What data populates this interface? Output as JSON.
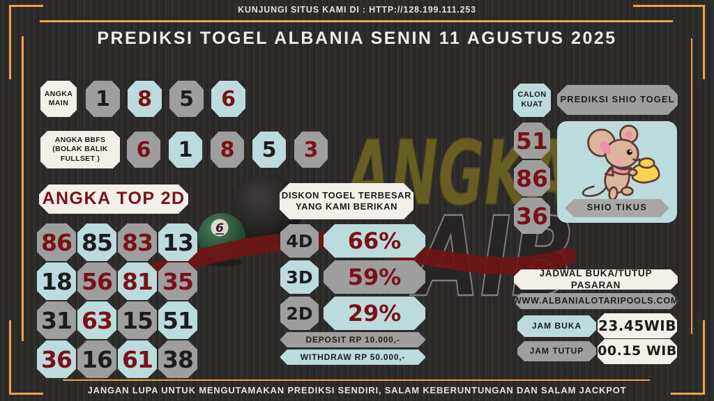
{
  "topbar": {
    "text": "KUNJUNGI SITUS KAMI DI : HTTP://128.199.111.253"
  },
  "header": {
    "title": "PREDIKSI TOGEL ALBANIA SENIN 11 AGUSTUS 2025"
  },
  "angka_main": {
    "label": "ANGKA\nMAIN",
    "tiles": [
      {
        "v": "1",
        "bg": "gray",
        "fg": "black"
      },
      {
        "v": "8",
        "bg": "blue",
        "fg": "red"
      },
      {
        "v": "5",
        "bg": "gray",
        "fg": "black"
      },
      {
        "v": "6",
        "bg": "blue",
        "fg": "red"
      }
    ]
  },
  "angka_bbfs": {
    "label": "ANGKA BBFS\n(BOLAK BALIK\nFULLSET )",
    "tiles": [
      {
        "v": "6",
        "bg": "gray",
        "fg": "red"
      },
      {
        "v": "1",
        "bg": "blue",
        "fg": "black"
      },
      {
        "v": "8",
        "bg": "gray",
        "fg": "red"
      },
      {
        "v": "5",
        "bg": "blue",
        "fg": "black"
      },
      {
        "v": "3",
        "bg": "gray",
        "fg": "red"
      }
    ]
  },
  "angka_top_2d": {
    "label": "ANGKA TOP 2D",
    "tiles": [
      {
        "v": "86",
        "bg": "gray",
        "fg": "red"
      },
      {
        "v": "85",
        "bg": "blue",
        "fg": "black"
      },
      {
        "v": "83",
        "bg": "gray",
        "fg": "red"
      },
      {
        "v": "13",
        "bg": "blue",
        "fg": "black"
      },
      {
        "v": "18",
        "bg": "blue",
        "fg": "black"
      },
      {
        "v": "56",
        "bg": "gray",
        "fg": "red"
      },
      {
        "v": "81",
        "bg": "blue",
        "fg": "red"
      },
      {
        "v": "35",
        "bg": "gray",
        "fg": "red"
      },
      {
        "v": "31",
        "bg": "gray",
        "fg": "black"
      },
      {
        "v": "63",
        "bg": "blue",
        "fg": "red"
      },
      {
        "v": "15",
        "bg": "gray",
        "fg": "black"
      },
      {
        "v": "51",
        "bg": "blue",
        "fg": "black"
      },
      {
        "v": "36",
        "bg": "blue",
        "fg": "red"
      },
      {
        "v": "16",
        "bg": "gray",
        "fg": "black"
      },
      {
        "v": "61",
        "bg": "blue",
        "fg": "red"
      },
      {
        "v": "38",
        "bg": "gray",
        "fg": "black"
      }
    ]
  },
  "diskon": {
    "label": "DISKON TOGEL TERBESAR\nYANG KAMI BERIKAN",
    "rows": [
      {
        "label": "4D",
        "value": "66%",
        "label_bg": "gray",
        "value_bg": "blue"
      },
      {
        "label": "3D",
        "value": "59%",
        "label_bg": "blue",
        "value_bg": "gray"
      },
      {
        "label": "2D",
        "value": "29%",
        "label_bg": "gray",
        "value_bg": "blue"
      }
    ],
    "deposit": "DEPOSIT RP 10.000,-",
    "withdraw": "WITHDRAW RP 50.000,-"
  },
  "shio": {
    "calon_kuat_label": "CALON\nKUAT",
    "header": "PREDIKSI SHIO TOGEL",
    "numbers": [
      {
        "v": "51",
        "bg": "gray",
        "fg": "red"
      },
      {
        "v": "86",
        "bg": "gray",
        "fg": "red"
      },
      {
        "v": "36",
        "bg": "gray",
        "fg": "red"
      }
    ],
    "shio_name": "SHIO TIKUS",
    "mascot_icon": "mouse-with-gold-ingot-icon"
  },
  "jadwal": {
    "title": "JADWAL BUKA/TUTUP PASARAN",
    "website": "WWW.ALBANIALOTARIPOOLS.COM",
    "jam_buka_label": "JAM BUKA",
    "jam_buka_value": "23.45WIB",
    "jam_tutup_label": "JAM TUTUP",
    "jam_tutup_value": "00.15 WIB"
  },
  "footer": {
    "text": "JANGAN LUPA UNTUK MENGUTAMAKAN PREDIKSI SENDIRI, SALAM KEBERUNTUNGAN DAN SALAM JACKPOT"
  },
  "art": {
    "watermark_line1": "ANGKA",
    "watermark_line2": "AIB",
    "pool_ball_number": "6"
  },
  "colors": {
    "gold": "#efa441",
    "tile_blue": "#bcdbdc",
    "tile_gray": "#9e9e9e",
    "tile_white": "#f3efe9",
    "number_red": "#7a1118",
    "ink": "#1c1c1c",
    "page_bg": "#2f2d2c"
  }
}
